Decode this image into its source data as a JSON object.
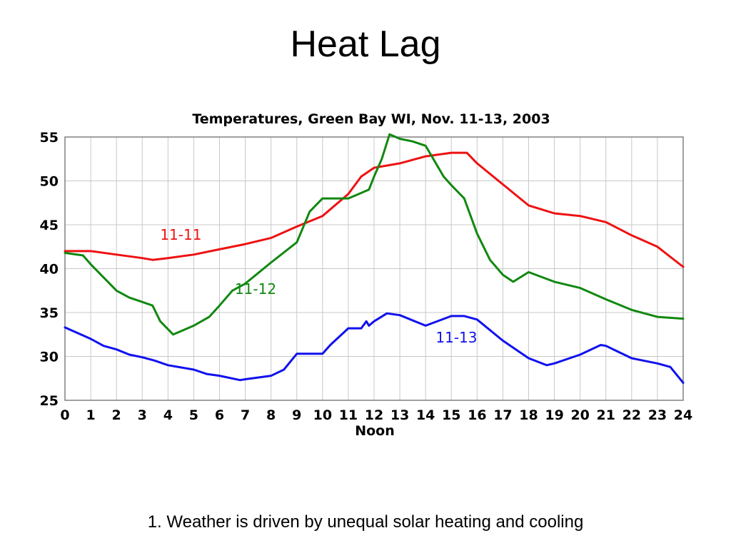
{
  "slide": {
    "title": "Heat Lag",
    "caption": "1. Weather is driven by unequal solar heating and cooling"
  },
  "chart_data": {
    "type": "line",
    "title": "Temperatures, Green Bay WI, Nov. 11-13, 2003",
    "xlabel": "Noon",
    "ylabel": "",
    "xlim": [
      0,
      24
    ],
    "ylim": [
      25,
      55
    ],
    "xticks": [
      "0",
      "1",
      "2",
      "3",
      "4",
      "5",
      "6",
      "7",
      "8",
      "9",
      "10",
      "11",
      "12",
      "13",
      "14",
      "15",
      "16",
      "17",
      "18",
      "19",
      "20",
      "21",
      "22",
      "23",
      "24"
    ],
    "yticks": [
      "25",
      "30",
      "35",
      "40",
      "45",
      "50",
      "55"
    ],
    "grid": true,
    "colors": {
      "grid": "#c8c8c8",
      "axis": "#808080"
    },
    "series": [
      {
        "name": "11-11",
        "color": "#ee1111",
        "x": [
          0,
          1,
          2,
          3,
          3.4,
          4,
          5,
          6,
          7,
          8,
          9,
          10,
          11,
          11.5,
          12,
          13,
          14,
          15,
          15.6,
          16,
          17,
          18,
          19,
          20,
          21,
          22,
          23,
          24
        ],
        "values": [
          42,
          42,
          41.6,
          41.2,
          41,
          41.2,
          41.6,
          42.2,
          42.8,
          43.5,
          44.8,
          46,
          48.5,
          50.5,
          51.5,
          52,
          52.8,
          53.2,
          53.2,
          52,
          49.6,
          47.2,
          46.3,
          46,
          45.3,
          43.8,
          42.5,
          40.2
        ]
      },
      {
        "name": "11-12",
        "color": "#118811",
        "x": [
          0,
          0.7,
          1,
          1.5,
          2,
          2.5,
          3,
          3.4,
          3.7,
          4.2,
          5,
          5.6,
          6,
          6.5,
          7,
          8,
          9,
          9.5,
          10,
          10.5,
          11,
          11.8,
          12,
          12.3,
          12.6,
          13,
          13.5,
          14,
          14.3,
          14.7,
          15,
          15.5,
          16,
          16.5,
          17,
          17.4,
          18,
          19,
          20,
          21,
          22,
          23,
          24
        ],
        "values": [
          41.8,
          41.5,
          40.5,
          39,
          37.5,
          36.7,
          36.2,
          35.8,
          34,
          32.5,
          33.5,
          34.5,
          35.8,
          37.5,
          38.3,
          40.7,
          43,
          46.5,
          48,
          48,
          48,
          49,
          50.5,
          52.5,
          55.3,
          54.8,
          54.5,
          54,
          52.5,
          50.5,
          49.5,
          48,
          44,
          41,
          39.3,
          38.5,
          39.6,
          38.5,
          37.8,
          36.5,
          35.3,
          34.5,
          34.3
        ]
      },
      {
        "name": "11-13",
        "color": "#1111ee",
        "x": [
          0,
          1,
          1.5,
          2,
          2.5,
          3,
          3.5,
          4,
          5,
          5.5,
          6,
          6.8,
          7,
          8,
          8.5,
          9,
          10,
          10.3,
          11,
          11.5,
          11.7,
          11.8,
          12,
          12.5,
          13,
          14,
          15,
          15.5,
          16,
          17,
          18,
          18.7,
          19,
          20,
          20.8,
          21,
          21.5,
          22,
          23,
          23.5,
          24
        ],
        "values": [
          33.3,
          32,
          31.2,
          30.8,
          30.2,
          29.9,
          29.5,
          29,
          28.5,
          28,
          27.8,
          27.3,
          27.4,
          27.8,
          28.5,
          30.3,
          30.3,
          31.3,
          33.2,
          33.2,
          34,
          33.5,
          34,
          34.9,
          34.7,
          33.5,
          34.6,
          34.6,
          34.2,
          31.8,
          29.8,
          29,
          29.2,
          30.2,
          31.3,
          31.2,
          30.5,
          29.8,
          29.2,
          28.8,
          27
        ]
      }
    ],
    "annotations": [
      {
        "text": "11-11",
        "x": 4.5,
        "y": 43.3,
        "series": "11-11"
      },
      {
        "text": "11-12",
        "x": 7.4,
        "y": 37.1,
        "series": "11-12"
      },
      {
        "text": "11-13",
        "x": 15.2,
        "y": 31.6,
        "series": "11-13"
      }
    ]
  }
}
